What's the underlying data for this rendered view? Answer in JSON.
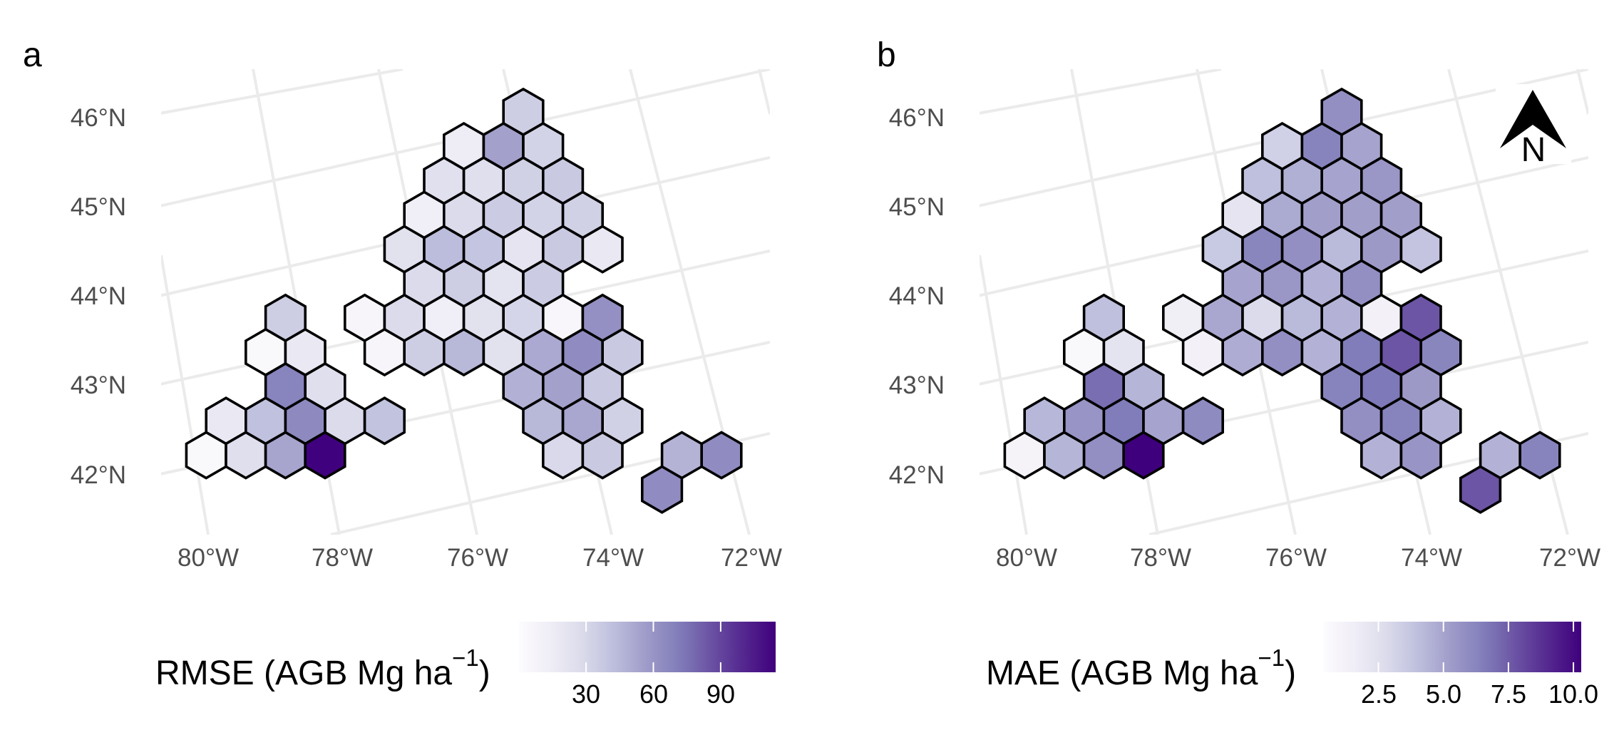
{
  "figure": {
    "north_arrow_label": "N",
    "palette_name": "Purples",
    "palette_colors": [
      "#FCFBFD",
      "#EFEDF5",
      "#DADAEB",
      "#BCBDDC",
      "#9E9AC8",
      "#807DBA",
      "#6A51A3",
      "#54278F",
      "#3F007D"
    ],
    "grid_color": "#EBEBEB",
    "hex_outline_color": "#000000"
  },
  "panels": [
    {
      "tag": "a",
      "lat_labels": [
        "46°N",
        "45°N",
        "44°N",
        "43°N",
        "42°N"
      ],
      "lon_labels": [
        "80°W",
        "78°W",
        "76°W",
        "74°W",
        "72°W"
      ],
      "legend": {
        "title_main": "RMSE (AGB Mg ha",
        "title_sup": "−1",
        "title_close": ")",
        "ticks": [
          "30",
          "60",
          "90"
        ],
        "tick_values": [
          30,
          60,
          90
        ],
        "range": [
          0.1,
          114.5
        ]
      }
    },
    {
      "tag": "b",
      "lat_labels": [
        "46°N",
        "45°N",
        "44°N",
        "43°N",
        "42°N"
      ],
      "lon_labels": [
        "80°W",
        "78°W",
        "76°W",
        "74°W",
        "72°W"
      ],
      "legend": {
        "title_main": "MAE (AGB Mg ha",
        "title_sup": "−1",
        "title_close": ")",
        "ticks": [
          "2.5",
          "5.0",
          "7.5",
          "10.0"
        ],
        "tick_values": [
          2.5,
          5.0,
          7.5,
          10.0
        ],
        "range": [
          0.4,
          10.3
        ]
      }
    }
  ],
  "chart_data": [
    {
      "type": "heatmap",
      "title": "a",
      "subtype": "hexbin map",
      "value_name": "RMSE (AGB Mg ha^-1)",
      "xlabel": "",
      "ylabel": "",
      "x_ticks": [
        "80°W",
        "78°W",
        "76°W",
        "74°W",
        "72°W"
      ],
      "y_ticks": [
        "42°N",
        "43°N",
        "44°N",
        "45°N",
        "46°N"
      ],
      "grid": true,
      "legend_position": "bottom",
      "color_range": [
        0.1,
        114.5
      ],
      "cells_note": "row 0 = northernmost hex row; col = doubled hex offset (even rows even cols, odd rows odd cols), col 0 = top hex",
      "cells": [
        {
          "row": 0,
          "col": 0,
          "value": 35
        },
        {
          "row": 1,
          "col": -3,
          "value": 15
        },
        {
          "row": 1,
          "col": -1,
          "value": 55
        },
        {
          "row": 1,
          "col": 1,
          "value": 32
        },
        {
          "row": 2,
          "col": -4,
          "value": 24
        },
        {
          "row": 2,
          "col": -2,
          "value": 25
        },
        {
          "row": 2,
          "col": 0,
          "value": 33
        },
        {
          "row": 2,
          "col": 2,
          "value": 37
        },
        {
          "row": 3,
          "col": -5,
          "value": 13
        },
        {
          "row": 3,
          "col": -3,
          "value": 28
        },
        {
          "row": 3,
          "col": -1,
          "value": 36
        },
        {
          "row": 3,
          "col": 1,
          "value": 32
        },
        {
          "row": 3,
          "col": 3,
          "value": 33
        },
        {
          "row": 4,
          "col": -6,
          "value": 23
        },
        {
          "row": 4,
          "col": -4,
          "value": 43
        },
        {
          "row": 4,
          "col": -2,
          "value": 39
        },
        {
          "row": 4,
          "col": 0,
          "value": 21
        },
        {
          "row": 4,
          "col": 2,
          "value": 37
        },
        {
          "row": 4,
          "col": 4,
          "value": 18
        },
        {
          "row": 5,
          "col": -5,
          "value": 28
        },
        {
          "row": 5,
          "col": -3,
          "value": 35
        },
        {
          "row": 5,
          "col": -1,
          "value": 22
        },
        {
          "row": 5,
          "col": 1,
          "value": 36
        },
        {
          "row": 6,
          "col": -12,
          "value": 35
        },
        {
          "row": 6,
          "col": -8,
          "value": 6
        },
        {
          "row": 6,
          "col": -6,
          "value": 28
        },
        {
          "row": 6,
          "col": -4,
          "value": 13
        },
        {
          "row": 6,
          "col": -2,
          "value": 23
        },
        {
          "row": 6,
          "col": 0,
          "value": 31
        },
        {
          "row": 6,
          "col": 2,
          "value": 5
        },
        {
          "row": 6,
          "col": 4,
          "value": 62
        },
        {
          "row": 7,
          "col": -13,
          "value": 3
        },
        {
          "row": 7,
          "col": -11,
          "value": 18
        },
        {
          "row": 7,
          "col": -7,
          "value": 6
        },
        {
          "row": 7,
          "col": -5,
          "value": 35
        },
        {
          "row": 7,
          "col": -3,
          "value": 45
        },
        {
          "row": 7,
          "col": -1,
          "value": 23
        },
        {
          "row": 7,
          "col": 1,
          "value": 51
        },
        {
          "row": 7,
          "col": 3,
          "value": 64
        },
        {
          "row": 7,
          "col": 5,
          "value": 37
        },
        {
          "row": 8,
          "col": -12,
          "value": 68
        },
        {
          "row": 8,
          "col": -10,
          "value": 25
        },
        {
          "row": 8,
          "col": 0,
          "value": 48
        },
        {
          "row": 8,
          "col": 2,
          "value": 55
        },
        {
          "row": 8,
          "col": 4,
          "value": 37
        },
        {
          "row": 9,
          "col": -15,
          "value": 18
        },
        {
          "row": 9,
          "col": -13,
          "value": 41
        },
        {
          "row": 9,
          "col": -11,
          "value": 65
        },
        {
          "row": 9,
          "col": -9,
          "value": 28
        },
        {
          "row": 9,
          "col": -7,
          "value": 40
        },
        {
          "row": 9,
          "col": 1,
          "value": 45
        },
        {
          "row": 9,
          "col": 3,
          "value": 52
        },
        {
          "row": 9,
          "col": 5,
          "value": 33
        },
        {
          "row": 10,
          "col": -16,
          "value": 3
        },
        {
          "row": 10,
          "col": -14,
          "value": 25
        },
        {
          "row": 10,
          "col": -12,
          "value": 53
        },
        {
          "row": 10,
          "col": -10,
          "value": 114
        },
        {
          "row": 10,
          "col": 2,
          "value": 29
        },
        {
          "row": 10,
          "col": 4,
          "value": 37
        },
        {
          "row": 10,
          "col": 8,
          "value": 47
        },
        {
          "row": 10,
          "col": 10,
          "value": 64
        },
        {
          "row": 11,
          "col": 7,
          "value": 64
        }
      ]
    },
    {
      "type": "heatmap",
      "title": "b",
      "subtype": "hexbin map",
      "value_name": "MAE (AGB Mg ha^-1)",
      "xlabel": "",
      "ylabel": "",
      "x_ticks": [
        "80°W",
        "78°W",
        "76°W",
        "74°W",
        "72°W"
      ],
      "y_ticks": [
        "42°N",
        "43°N",
        "44°N",
        "45°N",
        "46°N"
      ],
      "grid": true,
      "legend_position": "bottom",
      "color_range": [
        0.4,
        10.3
      ],
      "north_arrow": "top-right",
      "cells": [
        {
          "row": 0,
          "col": 0,
          "value": 5.8
        },
        {
          "row": 1,
          "col": -3,
          "value": 3.3
        },
        {
          "row": 1,
          "col": -1,
          "value": 6.3
        },
        {
          "row": 1,
          "col": 1,
          "value": 5.0
        },
        {
          "row": 2,
          "col": -4,
          "value": 4.0
        },
        {
          "row": 2,
          "col": -2,
          "value": 4.6
        },
        {
          "row": 2,
          "col": 0,
          "value": 5.0
        },
        {
          "row": 2,
          "col": 2,
          "value": 5.5
        },
        {
          "row": 3,
          "col": -5,
          "value": 2.2
        },
        {
          "row": 3,
          "col": -3,
          "value": 4.8
        },
        {
          "row": 3,
          "col": -1,
          "value": 5.2
        },
        {
          "row": 3,
          "col": 1,
          "value": 5.2
        },
        {
          "row": 3,
          "col": 3,
          "value": 5.2
        },
        {
          "row": 4,
          "col": -6,
          "value": 3.6
        },
        {
          "row": 4,
          "col": -4,
          "value": 6.2
        },
        {
          "row": 4,
          "col": -2,
          "value": 5.8
        },
        {
          "row": 4,
          "col": 0,
          "value": 4.2
        },
        {
          "row": 4,
          "col": 2,
          "value": 5.4
        },
        {
          "row": 4,
          "col": 4,
          "value": 3.8
        },
        {
          "row": 5,
          "col": -5,
          "value": 5.0
        },
        {
          "row": 5,
          "col": -3,
          "value": 5.5
        },
        {
          "row": 5,
          "col": -1,
          "value": 4.5
        },
        {
          "row": 5,
          "col": 1,
          "value": 5.8
        },
        {
          "row": 6,
          "col": -12,
          "value": 4.0
        },
        {
          "row": 6,
          "col": -8,
          "value": 1.5
        },
        {
          "row": 6,
          "col": -6,
          "value": 4.9
        },
        {
          "row": 6,
          "col": -4,
          "value": 2.8
        },
        {
          "row": 6,
          "col": -2,
          "value": 4.2
        },
        {
          "row": 6,
          "col": 0,
          "value": 4.5
        },
        {
          "row": 6,
          "col": 2,
          "value": 1.3
        },
        {
          "row": 6,
          "col": 4,
          "value": 7.7
        },
        {
          "row": 7,
          "col": -13,
          "value": 0.7
        },
        {
          "row": 7,
          "col": -11,
          "value": 2.3
        },
        {
          "row": 7,
          "col": -7,
          "value": 1.3
        },
        {
          "row": 7,
          "col": -5,
          "value": 4.7
        },
        {
          "row": 7,
          "col": -3,
          "value": 5.8
        },
        {
          "row": 7,
          "col": -1,
          "value": 4.5
        },
        {
          "row": 7,
          "col": 1,
          "value": 6.6
        },
        {
          "row": 7,
          "col": 3,
          "value": 7.7
        },
        {
          "row": 7,
          "col": 5,
          "value": 6.2
        },
        {
          "row": 8,
          "col": -12,
          "value": 7.0
        },
        {
          "row": 8,
          "col": -10,
          "value": 4.4
        },
        {
          "row": 8,
          "col": 0,
          "value": 6.3
        },
        {
          "row": 8,
          "col": 2,
          "value": 6.7
        },
        {
          "row": 8,
          "col": 4,
          "value": 5.4
        },
        {
          "row": 9,
          "col": -15,
          "value": 4.3
        },
        {
          "row": 9,
          "col": -13,
          "value": 5.6
        },
        {
          "row": 9,
          "col": -11,
          "value": 6.6
        },
        {
          "row": 9,
          "col": -9,
          "value": 5.0
        },
        {
          "row": 9,
          "col": -7,
          "value": 6.0
        },
        {
          "row": 9,
          "col": 1,
          "value": 5.8
        },
        {
          "row": 9,
          "col": 3,
          "value": 6.3
        },
        {
          "row": 9,
          "col": 5,
          "value": 4.5
        },
        {
          "row": 10,
          "col": -16,
          "value": 1.1
        },
        {
          "row": 10,
          "col": -14,
          "value": 4.4
        },
        {
          "row": 10,
          "col": -12,
          "value": 5.8
        },
        {
          "row": 10,
          "col": -10,
          "value": 10.3
        },
        {
          "row": 10,
          "col": 2,
          "value": 4.5
        },
        {
          "row": 10,
          "col": 4,
          "value": 5.6
        },
        {
          "row": 10,
          "col": 8,
          "value": 4.5
        },
        {
          "row": 10,
          "col": 10,
          "value": 6.3
        },
        {
          "row": 11,
          "col": 7,
          "value": 7.7
        }
      ]
    }
  ]
}
